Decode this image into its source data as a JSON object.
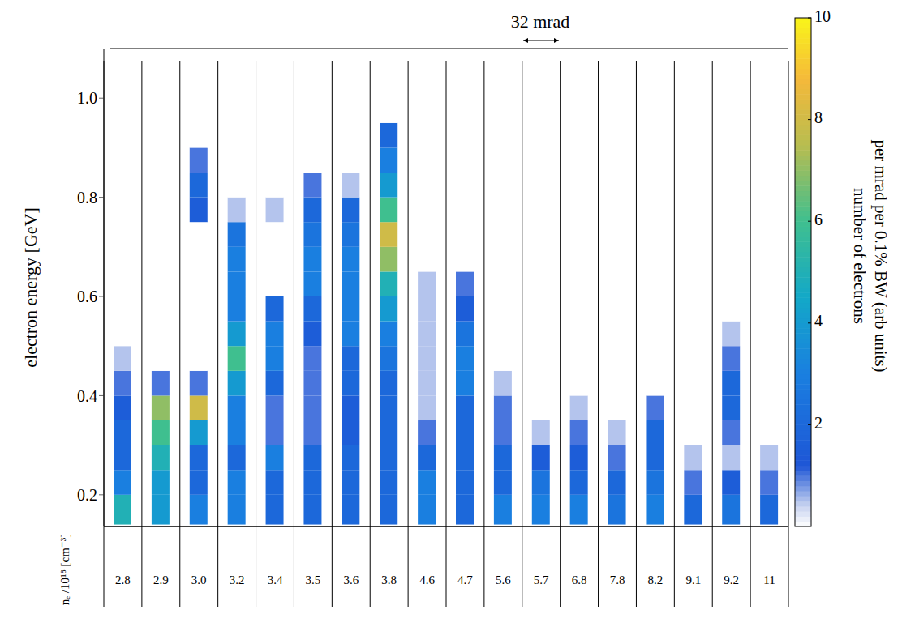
{
  "chart_data": {
    "type": "heatmap",
    "ylabel": "electron energy [GeV]",
    "xlabel": "nₑ /10¹⁸ [cm⁻³]",
    "annotation": "32 mrad",
    "grid": false,
    "categories": [
      "2.8",
      "2.9",
      "3.0",
      "3.2",
      "3.4",
      "3.5",
      "3.6",
      "3.8",
      "4.6",
      "4.7",
      "5.6",
      "5.7",
      "6.8",
      "7.8",
      "8.2",
      "9.1",
      "9.2",
      "11"
    ],
    "ylim": [
      0.136,
      1.1
    ],
    "yticks": [
      0.2,
      0.4,
      0.6,
      0.8,
      {
        "value": 1,
        "label": "1.0"
      }
    ],
    "energy_bins": [
      0.14,
      0.2,
      0.25,
      0.3,
      0.35,
      0.4,
      0.45,
      0.5,
      0.55,
      0.6,
      0.65,
      0.7,
      0.75,
      0.8,
      0.85,
      0.9,
      0.95,
      1.0
    ],
    "cells": [
      [
        5,
        3,
        2,
        2,
        1.5,
        1,
        0.5,
        0,
        0,
        0,
        0,
        0,
        0,
        0,
        0,
        0,
        0
      ],
      [
        4,
        4,
        5,
        6,
        7,
        1,
        0,
        0,
        0,
        0,
        0,
        0,
        0,
        0,
        0,
        0,
        0
      ],
      [
        3,
        2,
        2,
        4,
        8,
        1,
        0,
        0,
        0,
        0,
        0,
        0,
        1.5,
        2,
        1,
        0,
        0
      ],
      [
        3,
        3,
        2,
        3,
        3,
        4,
        6,
        4,
        3,
        3,
        3,
        2.5,
        0.5,
        0,
        0,
        0,
        0
      ],
      [
        2,
        2,
        3,
        1,
        1,
        2,
        3,
        3,
        2,
        0,
        0,
        0,
        0.5,
        0,
        0,
        0,
        0
      ],
      [
        2,
        2,
        2,
        1,
        1,
        1,
        1,
        1.5,
        2,
        3,
        3,
        2.5,
        2,
        1,
        0,
        0,
        0
      ],
      [
        2,
        2,
        2,
        1.5,
        1.5,
        2,
        2,
        3,
        3,
        3,
        3,
        2.5,
        2,
        0.5,
        0,
        0,
        0
      ],
      [
        2,
        2,
        2,
        2,
        2,
        2,
        2.5,
        3,
        4,
        5,
        7,
        8,
        6,
        4,
        3,
        2,
        0
      ],
      [
        3,
        3,
        2,
        1,
        0.5,
        0.5,
        0.5,
        0.5,
        0.5,
        0.5,
        0,
        0,
        0,
        0,
        0,
        0,
        0
      ],
      [
        2,
        2,
        2,
        2,
        2,
        3,
        3,
        2.5,
        1.5,
        1,
        0,
        0,
        0,
        0,
        0,
        0,
        0
      ],
      [
        3,
        2,
        2,
        1,
        1,
        0.5,
        0,
        0,
        0,
        0,
        0,
        0,
        0,
        0,
        0,
        0,
        0
      ],
      [
        3,
        2.5,
        1.5,
        0.5,
        0,
        0,
        0,
        0,
        0,
        0,
        0,
        0,
        0,
        0,
        0,
        0,
        0
      ],
      [
        3,
        2,
        1.5,
        1,
        0.5,
        0,
        0,
        0,
        0,
        0,
        0,
        0,
        0,
        0,
        0,
        0,
        0
      ],
      [
        2.5,
        2,
        1,
        0.5,
        0,
        0,
        0,
        0,
        0,
        0,
        0,
        0,
        0,
        0,
        0,
        0,
        0
      ],
      [
        3,
        2.5,
        2,
        2,
        1,
        0,
        0,
        0,
        0,
        0,
        0,
        0,
        0,
        0,
        0,
        0,
        0
      ],
      [
        2,
        1,
        0.5,
        0,
        0,
        0,
        0,
        0,
        0,
        0,
        0,
        0,
        0,
        0,
        0,
        0,
        0
      ],
      [
        2.5,
        1.5,
        0.5,
        1,
        2,
        2,
        1,
        0.5,
        0,
        0,
        0,
        0,
        0,
        0,
        0,
        0,
        0
      ],
      [
        2,
        1,
        0.5,
        0,
        0,
        0,
        0,
        0,
        0,
        0,
        0,
        0,
        0,
        0,
        0,
        0,
        0
      ]
    ],
    "colorbar": {
      "range": [
        0,
        10
      ],
      "ticks": [
        2,
        4,
        6,
        8,
        10
      ],
      "label": [
        "number of electrons",
        "per mrad per 0.1% BW  (arb units)"
      ]
    }
  }
}
